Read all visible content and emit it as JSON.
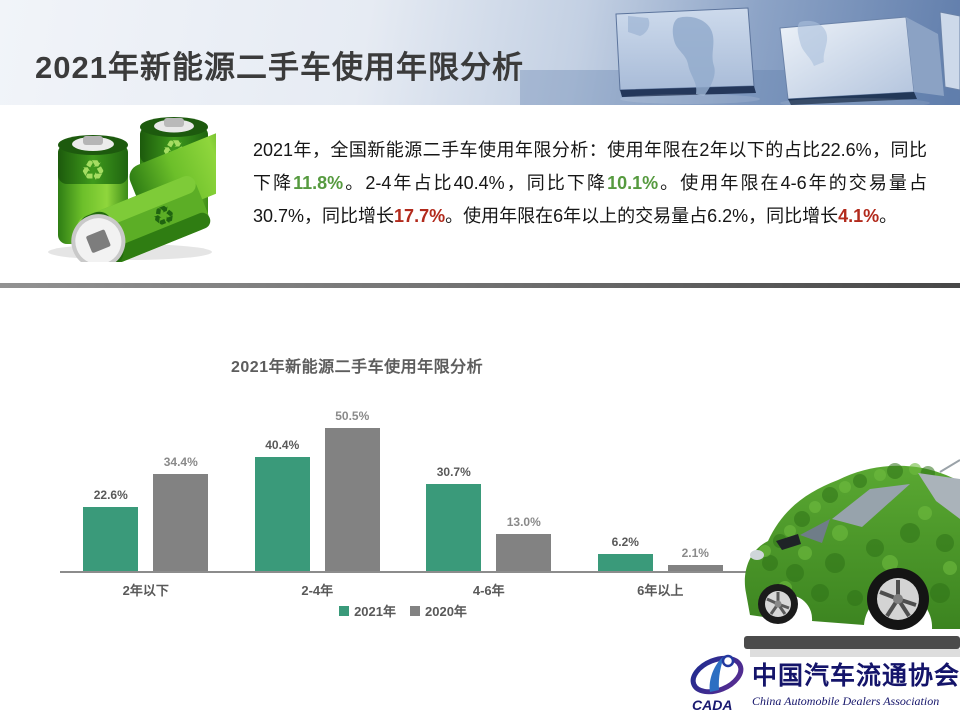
{
  "slide": {
    "title": "2021年新能源二手车使用年限分析"
  },
  "intro": {
    "segments": [
      {
        "text": "2021年，全国新能源二手车使用年限分析：使用年限在2年以下的占比22.6%，同比下降",
        "style": "normal"
      },
      {
        "text": "11.8%",
        "style": "green"
      },
      {
        "text": "。2-4年占比40.4%，同比下降",
        "style": "normal"
      },
      {
        "text": "10.1%",
        "style": "green"
      },
      {
        "text": "。使用年限在4-6年的交易量占30.7%，同比增长",
        "style": "normal"
      },
      {
        "text": "17.7%",
        "style": "red"
      },
      {
        "text": "。使用年限在6年以上的交易量占6.2%，同比增长",
        "style": "normal"
      },
      {
        "text": "4.1%",
        "style": "red"
      },
      {
        "text": "。",
        "style": "normal"
      }
    ]
  },
  "chart_data": {
    "type": "bar",
    "title": "2021年新能源二手车使用年限分析",
    "categories": [
      "2年以下",
      "2-4年",
      "4-6年",
      "6年以上"
    ],
    "series": [
      {
        "name": "2021年",
        "color": "#3a9a7a",
        "label_color": "#595959",
        "values": [
          22.6,
          40.4,
          30.7,
          6.2
        ]
      },
      {
        "name": "2020年",
        "color": "#828282",
        "label_color": "#8a8a8a",
        "values": [
          34.4,
          50.5,
          13.0,
          2.1
        ]
      }
    ],
    "value_suffix": "%",
    "ylim": [
      0,
      55
    ],
    "grid": false,
    "legend_position": "bottom",
    "data_labels": true
  },
  "logo": {
    "mark": "CADA",
    "name_cn": "中国汽车流通协会",
    "name_en": "China Automobile Dealers Association"
  },
  "images": {
    "battery": "green-recycle-batteries-photo",
    "car": "green-grass-covered-eco-car-photo",
    "header": "blue-3d-cubes-with-world-map"
  },
  "colors": {
    "normal": "#161616",
    "green": "#569a3f",
    "red": "#b22a1c",
    "axis": "#8c8c8c",
    "category_label": "#595959"
  }
}
